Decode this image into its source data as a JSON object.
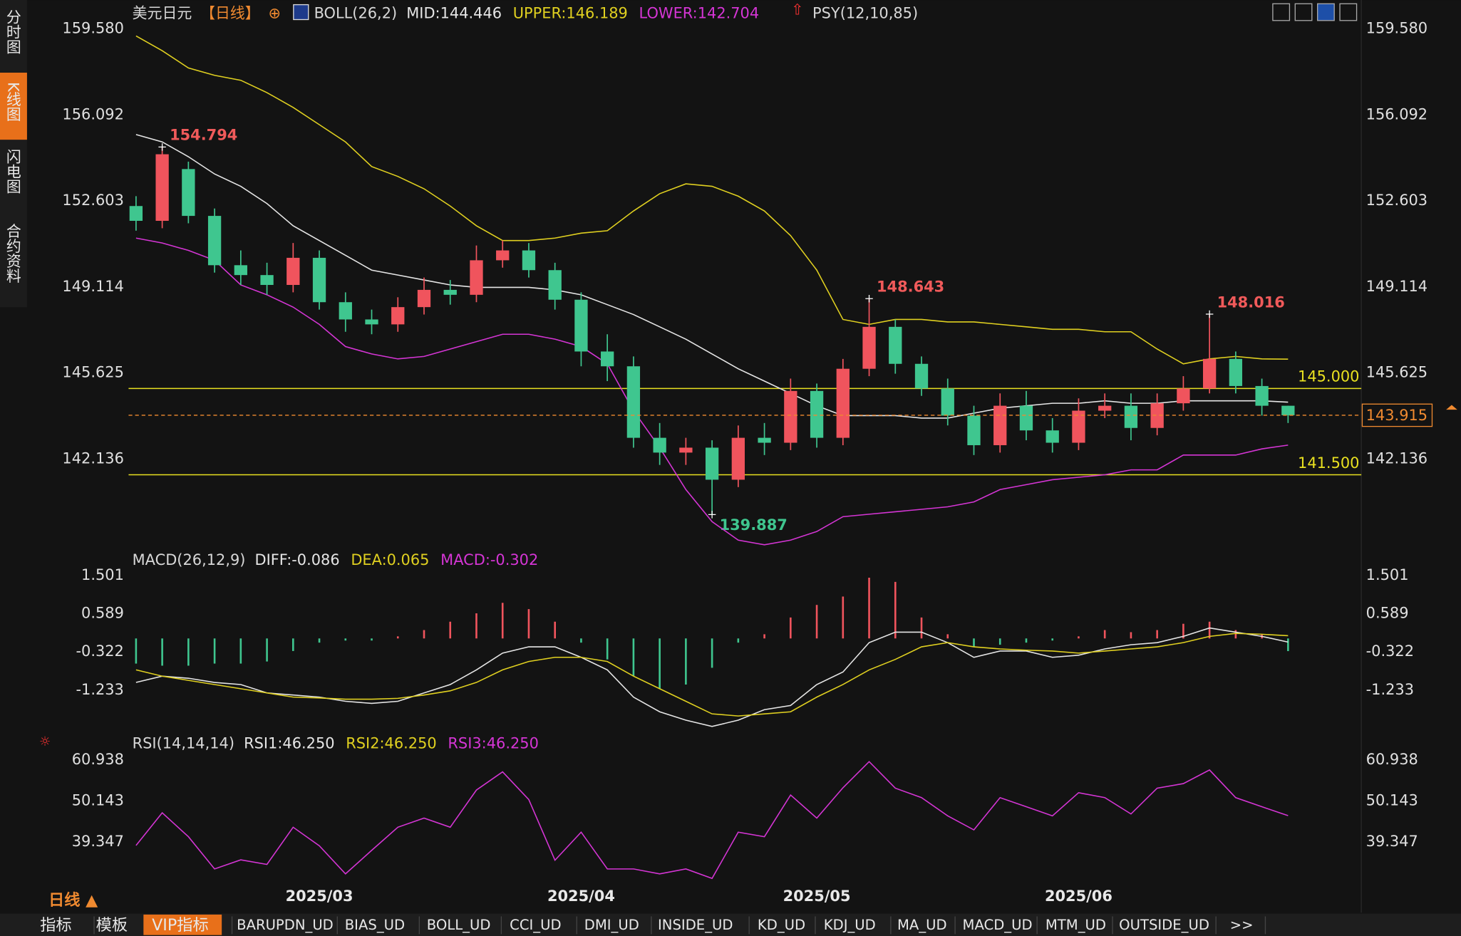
{
  "sidebar": [
    "分时图",
    "K线图",
    "闪电图",
    "合约资料"
  ],
  "bottom_tabs": [
    "指标",
    "模板",
    "VIP指标",
    "BARUPDN_UD",
    "BIAS_UD",
    "BOLL_UD",
    "CCI_UD",
    "DMI_UD",
    "INSIDE_UD",
    "KD_UD",
    "KDJ_UD",
    "MA_UD",
    "MACD_UD",
    "MTM_UD",
    "OUTSIDE_UD",
    ">>"
  ],
  "period_selector": "日线 ▲",
  "chart_data": {
    "type": "candlestick",
    "title": "美元日元",
    "period": "【日线】",
    "psy": "PSY(12,10,85)",
    "up_color": "#f0545d",
    "down_color": "#3fc68f",
    "categories": [
      null,
      null,
      null,
      null,
      null,
      null,
      null,
      "2025/03",
      null,
      null,
      null,
      null,
      null,
      null,
      null,
      null,
      null,
      "2025/04",
      null,
      null,
      null,
      null,
      null,
      null,
      null,
      null,
      "2025/05",
      null,
      null,
      null,
      null,
      null,
      null,
      null,
      null,
      null,
      "2025/06",
      null,
      null,
      null,
      null,
      null,
      null,
      null,
      null
    ],
    "open": [
      152.4,
      151.8,
      153.9,
      152.0,
      150.0,
      149.6,
      149.2,
      150.3,
      148.5,
      147.8,
      147.6,
      148.3,
      149.0,
      148.8,
      150.2,
      150.6,
      149.8,
      148.6,
      146.5,
      145.9,
      143.0,
      142.4,
      142.6,
      141.3,
      143.0,
      142.8,
      144.9,
      143.0,
      145.8,
      147.5,
      146.0,
      145.0,
      143.9,
      142.7,
      144.3,
      143.3,
      142.8,
      144.1,
      144.3,
      143.4,
      144.4,
      145.0,
      146.2,
      145.1,
      144.3
    ],
    "high": [
      152.8,
      154.794,
      154.2,
      152.3,
      150.6,
      150.1,
      150.9,
      150.6,
      148.9,
      148.2,
      148.7,
      149.5,
      149.4,
      150.8,
      151.0,
      150.9,
      150.1,
      148.9,
      147.2,
      146.3,
      143.6,
      143.0,
      142.9,
      143.5,
      143.6,
      145.4,
      145.2,
      146.2,
      148.643,
      147.8,
      146.3,
      145.4,
      144.3,
      144.8,
      144.9,
      143.8,
      144.6,
      144.8,
      144.8,
      144.8,
      145.5,
      148.016,
      146.5,
      145.4,
      144.3
    ],
    "low": [
      151.4,
      151.5,
      151.7,
      149.7,
      149.2,
      148.8,
      148.9,
      148.2,
      147.3,
      147.2,
      147.3,
      148.0,
      148.4,
      148.5,
      149.9,
      149.5,
      148.2,
      145.9,
      145.3,
      142.6,
      141.9,
      141.9,
      139.887,
      141.0,
      142.3,
      142.5,
      142.6,
      142.7,
      145.5,
      145.6,
      144.7,
      143.5,
      142.3,
      142.4,
      142.9,
      142.4,
      142.5,
      143.8,
      142.9,
      143.1,
      144.1,
      144.8,
      144.8,
      143.9,
      143.6
    ],
    "close": [
      151.8,
      154.5,
      152.0,
      150.0,
      149.6,
      149.2,
      150.3,
      148.5,
      147.8,
      147.6,
      148.3,
      149.0,
      148.8,
      150.2,
      150.6,
      149.8,
      148.6,
      146.5,
      145.9,
      143.0,
      142.4,
      142.6,
      141.3,
      143.0,
      142.8,
      144.9,
      143.0,
      145.8,
      147.5,
      146.0,
      145.0,
      143.9,
      142.7,
      144.3,
      143.3,
      142.8,
      144.1,
      144.3,
      143.4,
      144.4,
      145.0,
      146.2,
      145.1,
      144.3,
      143.915
    ],
    "ylim": [
      138.47,
      160.0
    ],
    "yticks": [
      {
        "value": 159.58,
        "label": "159.580"
      },
      156.092,
      152.603,
      149.114,
      145.625,
      142.136
    ],
    "price_line_color": "#f08a30",
    "levels": [
      {
        "value": 145,
        "label": "145.000"
      },
      {
        "value": 141.5,
        "label": "141.500"
      }
    ],
    "level_color": "#e8e020",
    "boll": {
      "title": "BOLL(26,2)",
      "legend": [
        "MID:144.446",
        "UPPER:146.189",
        "LOWER:142.704"
      ],
      "series": [
        {
          "color": "#e6e6e6",
          "values": [
            155.3,
            155.0,
            154.4,
            153.7,
            153.2,
            152.5,
            151.6,
            151.0,
            150.4,
            149.8,
            149.6,
            149.4,
            149.2,
            149.1,
            149.1,
            149.1,
            149.0,
            148.8,
            148.4,
            148.0,
            147.5,
            147.0,
            146.4,
            145.8,
            145.3,
            144.8,
            144.3,
            143.9,
            143.9,
            143.9,
            143.8,
            143.8,
            144.0,
            144.2,
            144.3,
            144.4,
            144.4,
            144.5,
            144.4,
            144.4,
            144.5,
            144.5,
            144.5,
            144.5,
            144.446
          ]
        },
        {
          "color": "#e0d020",
          "values": [
            159.3,
            158.7,
            158.0,
            157.7,
            157.5,
            157.0,
            156.4,
            155.7,
            155.0,
            154.0,
            153.6,
            153.1,
            152.4,
            151.6,
            151.0,
            151.0,
            151.1,
            151.3,
            151.4,
            152.2,
            152.9,
            153.3,
            153.2,
            152.8,
            152.2,
            151.2,
            149.8,
            147.8,
            147.6,
            147.8,
            147.8,
            147.7,
            147.7,
            147.6,
            147.5,
            147.4,
            147.4,
            147.3,
            147.3,
            146.6,
            146.0,
            146.2,
            146.3,
            146.2,
            146.189
          ]
        },
        {
          "color": "#d535d5",
          "values": [
            151.1,
            150.9,
            150.6,
            150.2,
            149.2,
            148.8,
            148.3,
            147.6,
            146.7,
            146.4,
            146.2,
            146.3,
            146.6,
            146.9,
            147.2,
            147.2,
            147.0,
            146.7,
            146.0,
            144.1,
            142.6,
            140.9,
            139.6,
            138.85,
            138.66,
            138.85,
            139.2,
            139.8,
            139.9,
            140.0,
            140.1,
            140.2,
            140.4,
            140.9,
            141.1,
            141.3,
            141.4,
            141.5,
            141.7,
            141.7,
            142.3,
            142.3,
            142.3,
            142.55,
            142.704
          ]
        }
      ]
    },
    "macd": {
      "title": "MACD(26,12,9)",
      "legend": [
        "DIFF:-0.086",
        "DEA:0.065",
        "MACD:-0.302"
      ],
      "ylim": [
        -2.211,
        1.634
      ],
      "yticks": [
        1.501,
        0.589,
        -0.322,
        -1.233
      ],
      "series": [
        {
          "color": "#e6e6e6",
          "values": [
            -1.05,
            -0.9,
            -0.95,
            -1.05,
            -1.1,
            -1.3,
            -1.35,
            -1.4,
            -1.5,
            -1.55,
            -1.5,
            -1.3,
            -1.1,
            -0.75,
            -0.35,
            -0.2,
            -0.2,
            -0.45,
            -0.75,
            -1.4,
            -1.75,
            -1.95,
            -2.1,
            -1.95,
            -1.7,
            -1.6,
            -1.1,
            -0.8,
            -0.1,
            0.15,
            0.15,
            -0.1,
            -0.45,
            -0.3,
            -0.3,
            -0.45,
            -0.4,
            -0.25,
            -0.15,
            -0.1,
            0.05,
            0.25,
            0.15,
            0.05,
            -0.086
          ]
        },
        {
          "color": "#e0d020",
          "values": [
            -0.75,
            -0.9,
            -1.0,
            -1.1,
            -1.2,
            -1.3,
            -1.4,
            -1.42,
            -1.45,
            -1.45,
            -1.43,
            -1.35,
            -1.25,
            -1.05,
            -0.75,
            -0.55,
            -0.45,
            -0.45,
            -0.55,
            -0.9,
            -1.2,
            -1.5,
            -1.8,
            -1.85,
            -1.8,
            -1.75,
            -1.4,
            -1.1,
            -0.75,
            -0.5,
            -0.2,
            -0.1,
            -0.2,
            -0.25,
            -0.28,
            -0.3,
            -0.35,
            -0.3,
            -0.25,
            -0.2,
            -0.1,
            0.05,
            0.12,
            0.1,
            0.065
          ]
        },
        {
          "color": "#d535d5",
          "values": [
            -0.6,
            -0.65,
            -0.65,
            -0.6,
            -0.6,
            -0.55,
            -0.3,
            -0.1,
            -0.05,
            -0.05,
            0.05,
            0.2,
            0.4,
            0.6,
            0.85,
            0.7,
            0.4,
            -0.1,
            -0.5,
            -0.9,
            -1.2,
            -1.1,
            -0.7,
            -0.1,
            0.1,
            0.5,
            0.8,
            1.0,
            1.45,
            1.35,
            0.5,
            0.1,
            -0.2,
            -0.15,
            -0.1,
            -0.05,
            0.05,
            0.2,
            0.15,
            0.2,
            0.35,
            0.4,
            0.2,
            0.1,
            -0.302
          ]
        }
      ]
    },
    "rsi": {
      "title": "RSI(14,14,14)",
      "legend": [
        "RSI1:46.250",
        "RSI2:46.250",
        "RSI3:46.250"
      ],
      "legend_colors": [
        "#e6e6e6",
        "#e0d020",
        "#d535d5"
      ],
      "ylim": [
        26.8,
        62.9
      ],
      "yticks": [
        60.938,
        50.143,
        39.347
      ],
      "color": "#d535d5",
      "values": [
        38.4,
        47.0,
        40.7,
        32.2,
        34.6,
        33.4,
        43.2,
        38.3,
        30.9,
        37.1,
        43.2,
        45.6,
        43.2,
        53.0,
        57.8,
        50.5,
        34.5,
        41.9,
        32.2,
        32.2,
        30.9,
        32.2,
        29.7,
        41.9,
        40.7,
        51.7,
        45.6,
        53.6,
        60.5,
        53.5,
        51.0,
        46.2,
        42.5,
        51.0,
        48.6,
        46.2,
        52.3,
        51.0,
        46.7,
        53.5,
        54.7,
        58.3,
        51.0,
        48.6,
        46.25
      ]
    }
  }
}
